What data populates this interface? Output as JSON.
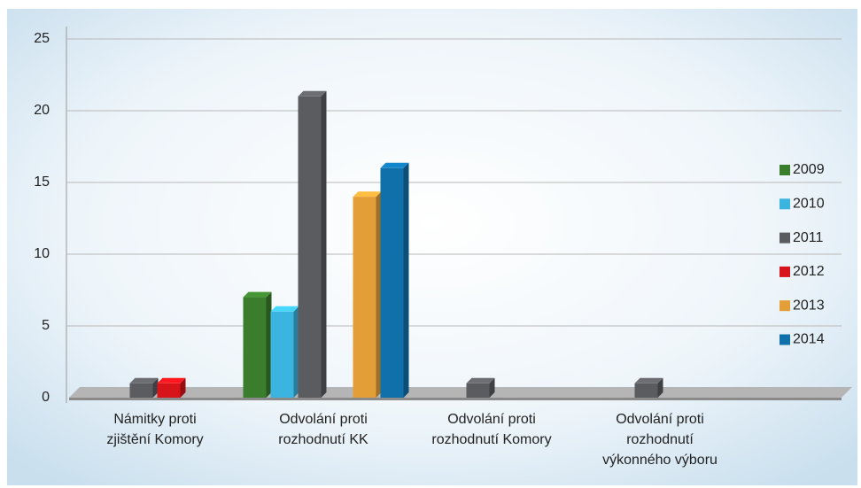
{
  "chart_data": {
    "type": "bar",
    "categories": [
      [
        "Námitky proti",
        "zjištění Komory"
      ],
      [
        "Odvolání proti",
        "rozhodnutí KK"
      ],
      [
        "Odvolání proti",
        "rozhodnutí Komory"
      ],
      [
        "Odvolání proti",
        "rozhodnutí",
        "výkonného výboru"
      ]
    ],
    "series": [
      {
        "name": "2009",
        "color": "#3a7d2c",
        "values": [
          0,
          7,
          0,
          0
        ]
      },
      {
        "name": "2010",
        "color": "#3cb4e0",
        "values": [
          0,
          6,
          0,
          0
        ]
      },
      {
        "name": "2011",
        "color": "#5a5c60",
        "values": [
          1,
          21,
          1,
          1
        ]
      },
      {
        "name": "2012",
        "color": "#d7141a",
        "values": [
          1,
          0,
          0,
          0
        ]
      },
      {
        "name": "2013",
        "color": "#e39e37",
        "values": [
          0,
          14,
          0,
          0
        ]
      },
      {
        "name": "2014",
        "color": "#1070aa",
        "values": [
          0,
          16,
          0,
          0
        ]
      }
    ],
    "ylim": [
      0,
      25
    ],
    "yticks": [
      0,
      5,
      10,
      15,
      20,
      25
    ],
    "grid": true,
    "legend": "right"
  }
}
